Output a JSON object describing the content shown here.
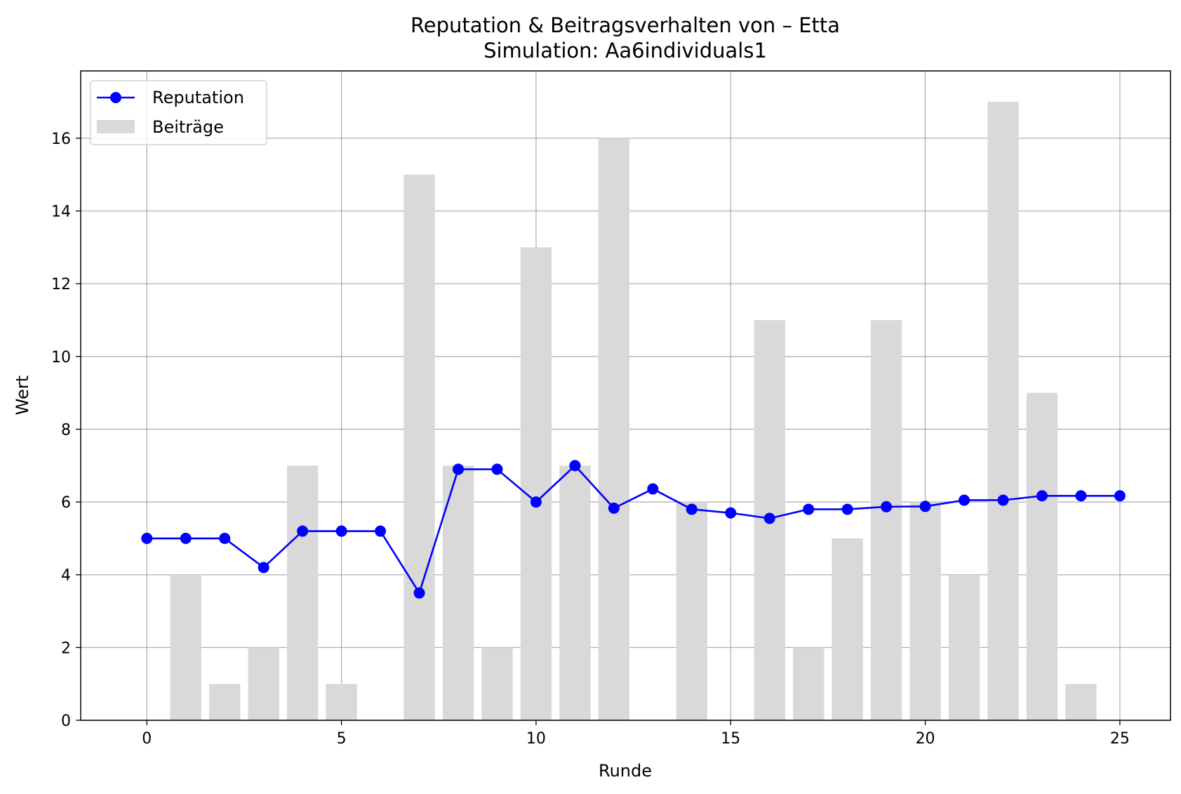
{
  "chart_data": {
    "type": "bar+line",
    "title": "Reputation & Beitragsverhalten von – Etta",
    "subtitle": "Simulation: Aa6individuals1",
    "xlabel": "Runde",
    "ylabel": "Wert",
    "xlim": [
      -1.7,
      26.3
    ],
    "ylim": [
      0,
      17.85
    ],
    "x_ticks": [
      0,
      5,
      10,
      15,
      20,
      25
    ],
    "y_ticks": [
      0,
      2,
      4,
      6,
      8,
      10,
      12,
      14,
      16
    ],
    "grid": true,
    "legend_position": "top-left",
    "x": [
      0,
      1,
      2,
      3,
      4,
      5,
      6,
      7,
      8,
      9,
      10,
      11,
      12,
      13,
      14,
      15,
      16,
      17,
      18,
      19,
      20,
      21,
      22,
      23,
      24,
      25
    ],
    "series": [
      {
        "name": "Reputation",
        "kind": "line",
        "color": "#0000ff",
        "marker": "circle",
        "values": [
          5.0,
          5.0,
          5.0,
          4.2,
          5.2,
          5.2,
          5.2,
          3.5,
          6.9,
          6.9,
          6.0,
          7.0,
          5.83,
          6.36,
          5.8,
          5.7,
          5.55,
          5.8,
          5.8,
          5.87,
          5.88,
          6.05,
          6.05,
          6.17,
          6.17,
          6.17
        ]
      },
      {
        "name": "Beiträge",
        "kind": "bar",
        "color": "#d9d9d9",
        "values": [
          0,
          4,
          1,
          2,
          7,
          1,
          0,
          15,
          7,
          2,
          13,
          7,
          16,
          0,
          6,
          0,
          11,
          2,
          5,
          11,
          6,
          4,
          17,
          9,
          1,
          0
        ]
      }
    ]
  }
}
